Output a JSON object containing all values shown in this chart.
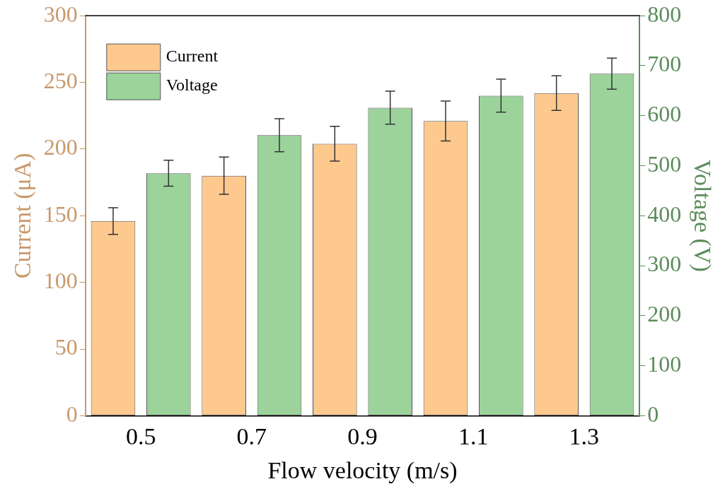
{
  "chart_data": {
    "type": "bar",
    "xlabel": "Flow velocity (m/s)",
    "ylabel": "Current (μA)",
    "y2label": "Voltage (V)",
    "categories": [
      "0.5",
      "0.7",
      "0.9",
      "1.1",
      "1.3"
    ],
    "series": [
      {
        "name": "Current",
        "color": "#fdc98e",
        "values": [
          146,
          180,
          204,
          221,
          242
        ],
        "errors": [
          10,
          14,
          13,
          15,
          13
        ]
      },
      {
        "name": "Voltage",
        "color": "#9bd39b",
        "axis": "y2",
        "values": [
          485,
          561,
          616,
          640,
          684
        ],
        "errors": [
          26,
          33,
          33,
          33,
          31
        ]
      }
    ],
    "ylim": [
      0,
      300
    ],
    "yticks": [
      0,
      50,
      100,
      150,
      200,
      250,
      300
    ],
    "y2lim": [
      0,
      800
    ],
    "y2ticks": [
      0,
      100,
      200,
      300,
      400,
      500,
      600,
      700,
      800
    ],
    "grid": false,
    "legend": "top left"
  }
}
